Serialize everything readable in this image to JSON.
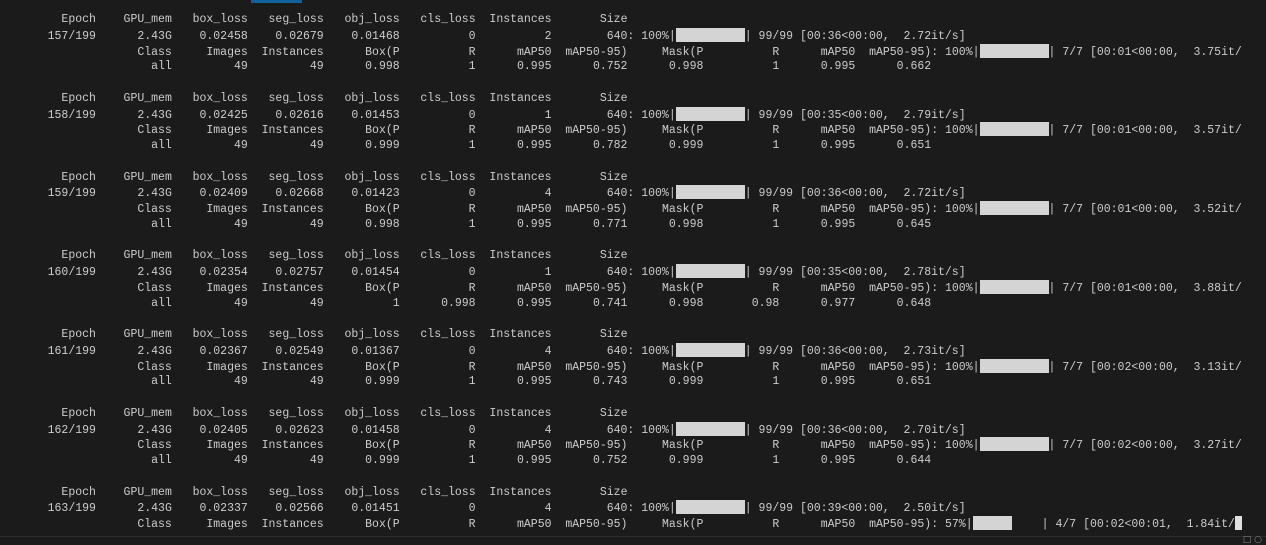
{
  "train_headers": [
    "Epoch",
    "GPU_mem",
    "box_loss",
    "seg_loss",
    "obj_loss",
    "cls_loss",
    "Instances",
    "Size"
  ],
  "val_headers": [
    "Class",
    "Images",
    "Instances",
    "Box(P",
    "R",
    "mAP50",
    "mAP50-95)",
    "Mask(P",
    "R",
    "mAP50",
    "mAP50-95)"
  ],
  "epochs": [
    {
      "epoch": "157/199",
      "gpu_mem": "2.43G",
      "box_loss": "0.02458",
      "seg_loss": "0.02679",
      "obj_loss": "0.01468",
      "cls_loss": "0",
      "instances": "2",
      "size": "640",
      "train_progress": {
        "percent": "100%",
        "fraction": 1.0,
        "count": "99/99",
        "timing": "[00:36<00:00,  2.72it/s]"
      },
      "val_progress": {
        "percent": "100%",
        "fraction": 1.0,
        "count": "7/7",
        "timing": "[00:01<00:00,  3.75it/"
      },
      "metrics": [
        "all",
        "49",
        "49",
        "0.998",
        "1",
        "0.995",
        "0.752",
        "0.998",
        "1",
        "0.995",
        "0.662"
      ]
    },
    {
      "epoch": "158/199",
      "gpu_mem": "2.43G",
      "box_loss": "0.02425",
      "seg_loss": "0.02616",
      "obj_loss": "0.01453",
      "cls_loss": "0",
      "instances": "1",
      "size": "640",
      "train_progress": {
        "percent": "100%",
        "fraction": 1.0,
        "count": "99/99",
        "timing": "[00:35<00:00,  2.79it/s]"
      },
      "val_progress": {
        "percent": "100%",
        "fraction": 1.0,
        "count": "7/7",
        "timing": "[00:01<00:00,  3.57it/"
      },
      "metrics": [
        "all",
        "49",
        "49",
        "0.999",
        "1",
        "0.995",
        "0.782",
        "0.999",
        "1",
        "0.995",
        "0.651"
      ]
    },
    {
      "epoch": "159/199",
      "gpu_mem": "2.43G",
      "box_loss": "0.02409",
      "seg_loss": "0.02668",
      "obj_loss": "0.01423",
      "cls_loss": "0",
      "instances": "4",
      "size": "640",
      "train_progress": {
        "percent": "100%",
        "fraction": 1.0,
        "count": "99/99",
        "timing": "[00:36<00:00,  2.72it/s]"
      },
      "val_progress": {
        "percent": "100%",
        "fraction": 1.0,
        "count": "7/7",
        "timing": "[00:01<00:00,  3.52it/"
      },
      "metrics": [
        "all",
        "49",
        "49",
        "0.998",
        "1",
        "0.995",
        "0.771",
        "0.998",
        "1",
        "0.995",
        "0.645"
      ]
    },
    {
      "epoch": "160/199",
      "gpu_mem": "2.43G",
      "box_loss": "0.02354",
      "seg_loss": "0.02757",
      "obj_loss": "0.01454",
      "cls_loss": "0",
      "instances": "1",
      "size": "640",
      "train_progress": {
        "percent": "100%",
        "fraction": 1.0,
        "count": "99/99",
        "timing": "[00:35<00:00,  2.78it/s]"
      },
      "val_progress": {
        "percent": "100%",
        "fraction": 1.0,
        "count": "7/7",
        "timing": "[00:01<00:00,  3.88it/"
      },
      "metrics": [
        "all",
        "49",
        "49",
        "1",
        "0.998",
        "0.995",
        "0.741",
        "0.998",
        "0.98",
        "0.977",
        "0.648"
      ]
    },
    {
      "epoch": "161/199",
      "gpu_mem": "2.43G",
      "box_loss": "0.02367",
      "seg_loss": "0.02549",
      "obj_loss": "0.01367",
      "cls_loss": "0",
      "instances": "4",
      "size": "640",
      "train_progress": {
        "percent": "100%",
        "fraction": 1.0,
        "count": "99/99",
        "timing": "[00:36<00:00,  2.73it/s]"
      },
      "val_progress": {
        "percent": "100%",
        "fraction": 1.0,
        "count": "7/7",
        "timing": "[00:02<00:00,  3.13it/"
      },
      "metrics": [
        "all",
        "49",
        "49",
        "0.999",
        "1",
        "0.995",
        "0.743",
        "0.999",
        "1",
        "0.995",
        "0.651"
      ]
    },
    {
      "epoch": "162/199",
      "gpu_mem": "2.43G",
      "box_loss": "0.02405",
      "seg_loss": "0.02623",
      "obj_loss": "0.01458",
      "cls_loss": "0",
      "instances": "4",
      "size": "640",
      "train_progress": {
        "percent": "100%",
        "fraction": 1.0,
        "count": "99/99",
        "timing": "[00:36<00:00,  2.70it/s]"
      },
      "val_progress": {
        "percent": "100%",
        "fraction": 1.0,
        "count": "7/7",
        "timing": "[00:02<00:00,  3.27it/"
      },
      "metrics": [
        "all",
        "49",
        "49",
        "0.999",
        "1",
        "0.995",
        "0.752",
        "0.999",
        "1",
        "0.995",
        "0.644"
      ]
    },
    {
      "epoch": "163/199",
      "gpu_mem": "2.43G",
      "box_loss": "0.02337",
      "seg_loss": "0.02566",
      "obj_loss": "0.01451",
      "cls_loss": "0",
      "instances": "4",
      "size": "640",
      "train_progress": {
        "percent": "100%",
        "fraction": 1.0,
        "count": "99/99",
        "timing": "[00:39<00:00,  2.50it/s]"
      },
      "val_progress": {
        "percent": "57%",
        "fraction": 0.57,
        "count": "4/7",
        "timing": "[00:02<00:01,  1.84it/"
      },
      "metrics": null
    }
  ],
  "colors": {
    "background": "#1b1b1b",
    "text": "#cccccc",
    "bar": "#d4d4d4",
    "tab_accent": "#0e639c"
  }
}
